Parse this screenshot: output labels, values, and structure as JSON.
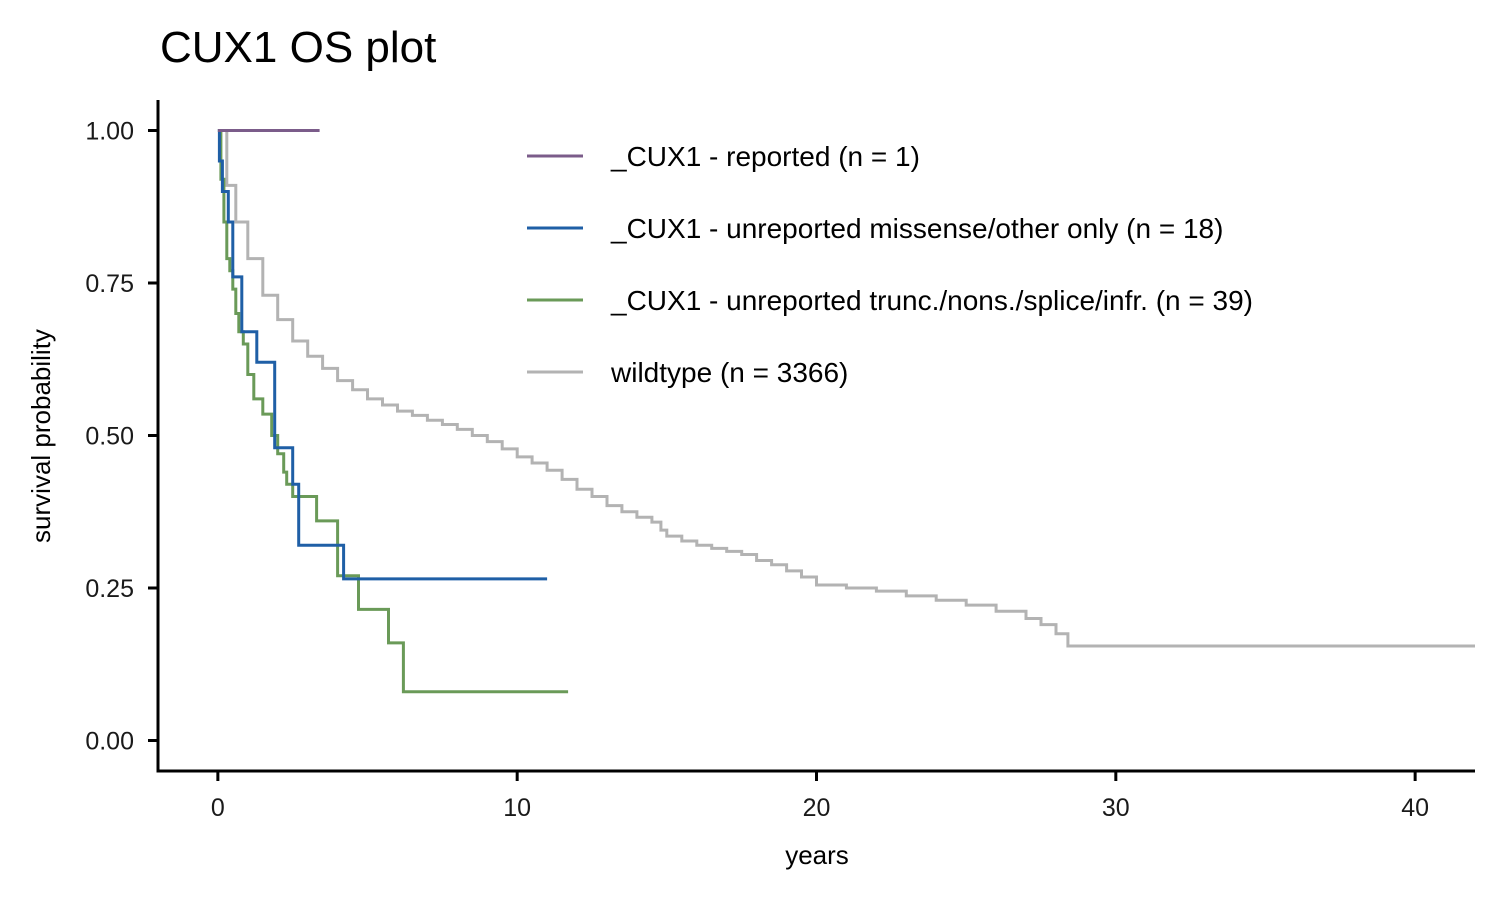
{
  "chart_data": {
    "type": "line",
    "subtype": "kaplan-meier step",
    "title": "CUX1 OS plot",
    "xlabel": "years",
    "ylabel": "survival probability",
    "xlim": [
      -2,
      42
    ],
    "ylim": [
      -0.05,
      1.05
    ],
    "x_ticks": [
      0,
      10,
      20,
      30,
      40
    ],
    "x_tick_labels": [
      "0",
      "10",
      "20",
      "30",
      "40"
    ],
    "y_ticks": [
      0,
      0.25,
      0.5,
      0.75,
      1.0
    ],
    "y_tick_labels": [
      "0.00",
      "0.25",
      "0.50",
      "0.75",
      "1.00"
    ],
    "grid": false,
    "legend_position": "top-right",
    "series": [
      {
        "name": "_CUX1 - reported (n = 1)",
        "color": "#7b5c8a",
        "x": [
          0,
          3.4
        ],
        "y": [
          1.0,
          1.0
        ]
      },
      {
        "name": "_CUX1 - unreported missense/other only (n = 18)",
        "color": "#1f5fa6",
        "x": [
          0,
          0.05,
          0.15,
          0.35,
          0.5,
          0.8,
          1.3,
          1.9,
          2.5,
          2.7,
          3.2,
          4.0,
          4.2,
          11.0
        ],
        "y": [
          1.0,
          0.95,
          0.9,
          0.85,
          0.76,
          0.67,
          0.62,
          0.48,
          0.42,
          0.32,
          0.32,
          0.32,
          0.265,
          0.265
        ]
      },
      {
        "name": "_CUX1 - unreported trunc./nons./splice/infr. (n = 39)",
        "color": "#6a9a58",
        "x": [
          0,
          0.1,
          0.2,
          0.3,
          0.4,
          0.5,
          0.6,
          0.7,
          0.85,
          1.0,
          1.2,
          1.5,
          1.8,
          2.0,
          2.2,
          2.3,
          2.5,
          3.3,
          4.0,
          4.7,
          5.7,
          6.2,
          11.7
        ],
        "y": [
          1.0,
          0.92,
          0.85,
          0.79,
          0.77,
          0.74,
          0.7,
          0.67,
          0.65,
          0.6,
          0.56,
          0.535,
          0.5,
          0.47,
          0.44,
          0.42,
          0.4,
          0.36,
          0.27,
          0.215,
          0.16,
          0.08,
          0.08
        ]
      },
      {
        "name": "wildtype (n = 3366)",
        "color": "#b3b3b3",
        "x": [
          0,
          0.3,
          0.6,
          1.0,
          1.5,
          2.0,
          2.5,
          3.0,
          3.5,
          4.0,
          4.5,
          5.0,
          5.5,
          6.0,
          6.5,
          7.0,
          7.5,
          8.0,
          8.5,
          9.0,
          9.5,
          10.0,
          10.5,
          11.0,
          11.5,
          12.0,
          12.5,
          13.0,
          13.5,
          14.0,
          14.5,
          14.8,
          15.0,
          15.5,
          16.0,
          16.5,
          17.0,
          17.5,
          18.0,
          18.5,
          19.0,
          19.5,
          20.0,
          21.0,
          22.0,
          23.0,
          24.0,
          25.0,
          26.0,
          27.0,
          27.5,
          28.0,
          28.4,
          42.0
        ],
        "y": [
          1.0,
          0.91,
          0.85,
          0.79,
          0.73,
          0.69,
          0.655,
          0.63,
          0.61,
          0.59,
          0.575,
          0.56,
          0.55,
          0.54,
          0.533,
          0.525,
          0.518,
          0.51,
          0.5,
          0.49,
          0.478,
          0.465,
          0.455,
          0.443,
          0.428,
          0.412,
          0.4,
          0.385,
          0.375,
          0.366,
          0.358,
          0.345,
          0.335,
          0.327,
          0.32,
          0.315,
          0.31,
          0.305,
          0.295,
          0.288,
          0.278,
          0.268,
          0.255,
          0.25,
          0.245,
          0.237,
          0.23,
          0.222,
          0.212,
          0.2,
          0.19,
          0.175,
          0.155,
          0.155
        ]
      }
    ]
  }
}
